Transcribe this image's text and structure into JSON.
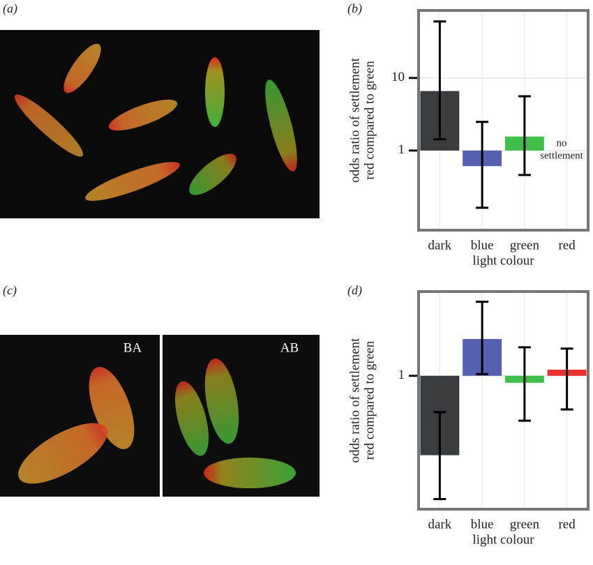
{
  "panel_labels": [
    "(a)",
    "(b)",
    "(c)",
    "(d)"
  ],
  "image_labels": [
    "BA",
    "AB"
  ],
  "chart_data": [
    {
      "type": "bar",
      "log_scale": true,
      "grid": true,
      "categories": [
        "dark",
        "blue",
        "green",
        "red"
      ],
      "values": [
        6.6,
        0.61,
        1.56,
        null
      ],
      "error_low": [
        1.43,
        0.163,
        0.46,
        null
      ],
      "error_high": [
        60,
        2.48,
        5.6,
        null
      ],
      "colors": [
        "#3a3d3f",
        "#5561b0",
        "#3fbf4a",
        "#e8312d"
      ],
      "baseline": 1,
      "ylim": [
        0.08,
        85
      ],
      "yticks": [
        1,
        10
      ],
      "xlabel": "light colour",
      "ylabel": [
        "odds ratio of settlement",
        "red compared to green"
      ],
      "annotation": [
        "no",
        "settlement"
      ]
    },
    {
      "type": "bar",
      "log_scale": true,
      "grid": true,
      "categories": [
        "dark",
        "blue",
        "green",
        "red"
      ],
      "values": [
        0.417,
        1.5,
        0.926,
        1.07
      ],
      "error_low": [
        0.257,
        1.02,
        0.61,
        0.69
      ],
      "error_high": [
        0.67,
        2.26,
        1.37,
        1.35
      ],
      "colors": [
        "#3a3d3f",
        "#5561b0",
        "#3fbf4a",
        "#e8312d"
      ],
      "baseline": 1,
      "ylim": [
        0.23,
        2.53
      ],
      "yticks": [
        1
      ],
      "xlabel": "light colour",
      "ylabel": [
        "odds ratio of settlement",
        "red compared to green"
      ]
    }
  ]
}
